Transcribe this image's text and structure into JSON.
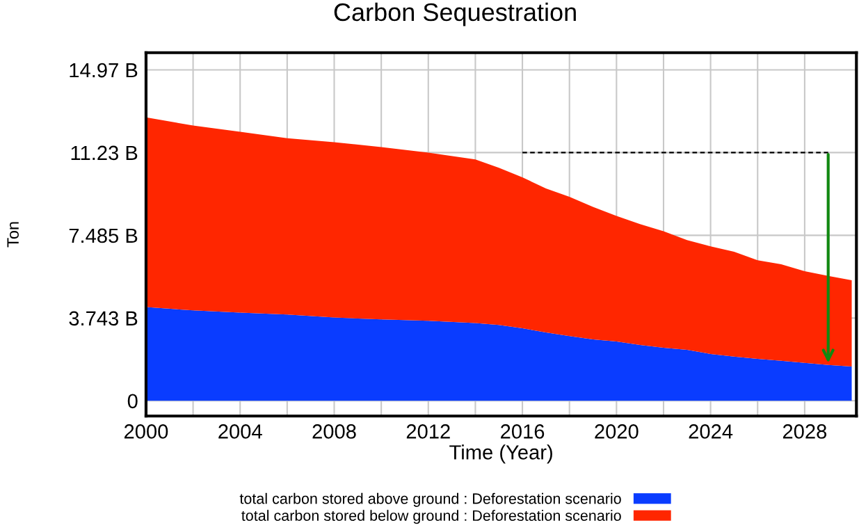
{
  "chart_data": {
    "type": "area",
    "stacked": true,
    "title": "Carbon Sequestration",
    "xlabel": "Time (Year)",
    "ylabel": "Ton",
    "x": [
      2000,
      2002,
      2004,
      2006,
      2008,
      2010,
      2012,
      2014,
      2015,
      2016,
      2017,
      2018,
      2019,
      2020,
      2021,
      2022,
      2023,
      2024,
      2025,
      2026,
      2027,
      2028,
      2029,
      2030
    ],
    "series": [
      {
        "name": "total carbon stored above ground : Deforestation scenario",
        "color": "#0a3cff",
        "values": [
          4.24,
          4.09,
          3.99,
          3.9,
          3.77,
          3.68,
          3.62,
          3.52,
          3.43,
          3.28,
          3.09,
          2.93,
          2.78,
          2.68,
          2.53,
          2.4,
          2.31,
          2.12,
          2.0,
          1.9,
          1.81,
          1.72,
          1.62,
          1.55
        ]
      },
      {
        "name": "total carbon stored below ground : Deforestation scenario",
        "color": "#ff2600",
        "values": [
          8.58,
          8.36,
          8.18,
          7.98,
          7.93,
          7.8,
          7.61,
          7.4,
          7.11,
          6.83,
          6.52,
          6.3,
          5.99,
          5.68,
          5.46,
          5.27,
          4.96,
          4.87,
          4.74,
          4.46,
          4.37,
          4.14,
          4.03,
          3.9
        ]
      },
      {
        "type": "line",
        "x": [
          2016,
          2029
        ],
        "values": [
          11.23,
          11.23
        ],
        "color": "#000000",
        "line_style": "dashed"
      }
    ],
    "xlim": [
      2000,
      2030.2
    ],
    "ylim": [
      -0.69,
      15.75
    ],
    "xticks": [
      2000,
      {
        "value": 2002,
        "label": null
      },
      2004,
      {
        "value": 2006,
        "label": null
      },
      2008,
      {
        "value": 2010,
        "label": null
      },
      2012,
      {
        "value": 2014,
        "label": null
      },
      2016,
      {
        "value": 2018,
        "label": null
      },
      2020,
      {
        "value": 2022,
        "label": null
      },
      2024,
      {
        "value": 2026,
        "label": null
      },
      2028
    ],
    "yticks": [
      0,
      {
        "value": 3.743,
        "label": "3.743 B"
      },
      {
        "value": 7.485,
        "label": "7.485 B"
      },
      {
        "value": 11.23,
        "label": "11.23 B"
      },
      {
        "value": 14.97,
        "label": "14.97 B"
      }
    ],
    "grid": true,
    "legend": "bottom"
  }
}
